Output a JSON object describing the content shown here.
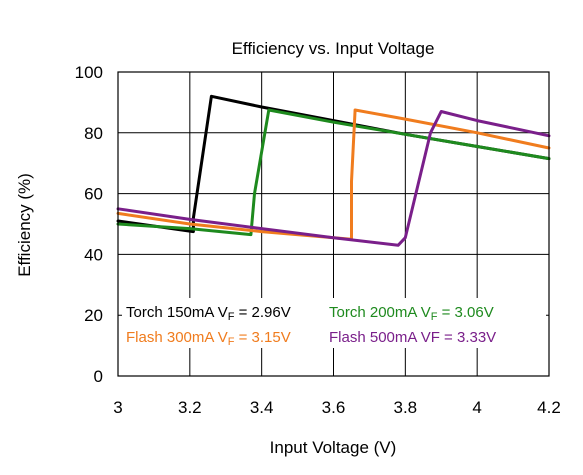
{
  "chart_data": {
    "type": "line",
    "title": "Efficiency vs. Input Voltage",
    "xlabel": "Input Voltage (V)",
    "ylabel": "Efficiency (%)",
    "xlim": [
      3,
      4.2
    ],
    "ylim": [
      0,
      100
    ],
    "x_ticks": [
      "3",
      "3.2",
      "3.4",
      "3.6",
      "3.8",
      "4",
      "4.2"
    ],
    "x_tick_values": [
      3,
      3.2,
      3.4,
      3.6,
      3.8,
      4,
      4.2
    ],
    "y_ticks": [
      "0",
      "20",
      "40",
      "60",
      "80",
      "100"
    ],
    "y_tick_values": [
      0,
      20,
      40,
      60,
      80,
      100
    ],
    "grid": true,
    "series": [
      {
        "name": "Torch 150mA VF = 2.96V",
        "color": "#000000",
        "points": [
          [
            3.0,
            51.0
          ],
          [
            3.21,
            47.5
          ],
          [
            3.21,
            52.0
          ],
          [
            3.26,
            92.0
          ],
          [
            3.4,
            88.5
          ],
          [
            3.6,
            84.0
          ],
          [
            3.8,
            79.5
          ],
          [
            4.0,
            75.5
          ],
          [
            4.2,
            71.5
          ]
        ]
      },
      {
        "name": "Torch 200mA VF = 3.06V",
        "color": "#1e8a1e",
        "points": [
          [
            3.0,
            50.0
          ],
          [
            3.2,
            48.5
          ],
          [
            3.37,
            46.5
          ],
          [
            3.38,
            60.0
          ],
          [
            3.42,
            87.5
          ],
          [
            3.6,
            83.5
          ],
          [
            3.8,
            79.5
          ],
          [
            4.0,
            75.5
          ],
          [
            4.2,
            71.5
          ]
        ]
      },
      {
        "name": "Flash 300mA VF = 3.15V",
        "color": "#f07c1e",
        "points": [
          [
            3.0,
            53.5
          ],
          [
            3.2,
            50.0
          ],
          [
            3.4,
            47.5
          ],
          [
            3.65,
            45.0
          ],
          [
            3.65,
            64.0
          ],
          [
            3.66,
            87.5
          ],
          [
            3.8,
            84.5
          ],
          [
            4.0,
            80.0
          ],
          [
            4.2,
            75.0
          ]
        ]
      },
      {
        "name": "Flash 500mA VF = 3.33V",
        "color": "#7a1f8a",
        "points": [
          [
            3.0,
            55.0
          ],
          [
            3.2,
            51.5
          ],
          [
            3.4,
            48.5
          ],
          [
            3.6,
            45.5
          ],
          [
            3.78,
            43.0
          ],
          [
            3.8,
            45.5
          ],
          [
            3.87,
            80.0
          ],
          [
            3.9,
            87.0
          ],
          [
            4.0,
            84.0
          ],
          [
            4.2,
            79.0
          ]
        ]
      }
    ],
    "legend": {
      "placement": "inside-bottom",
      "rows": [
        {
          "entries": [
            {
              "series_index": 0,
              "prefix": "Torch 150mA V",
              "sub": "F",
              "suffix": " = 2.96V",
              "color": "#000000"
            },
            {
              "series_index": 1,
              "prefix": "Torch 200mA V",
              "sub": "F",
              "suffix": " = 3.06V",
              "color": "#1e8a1e"
            }
          ]
        },
        {
          "entries": [
            {
              "series_index": 2,
              "prefix": "Flash 300mA V",
              "sub": "F",
              "suffix": " = 3.15V",
              "color": "#f07c1e"
            },
            {
              "series_index": 3,
              "prefix": "Flash 500mA VF = 3.33V",
              "sub": "",
              "suffix": "",
              "color": "#7a1f8a"
            }
          ]
        }
      ]
    }
  }
}
